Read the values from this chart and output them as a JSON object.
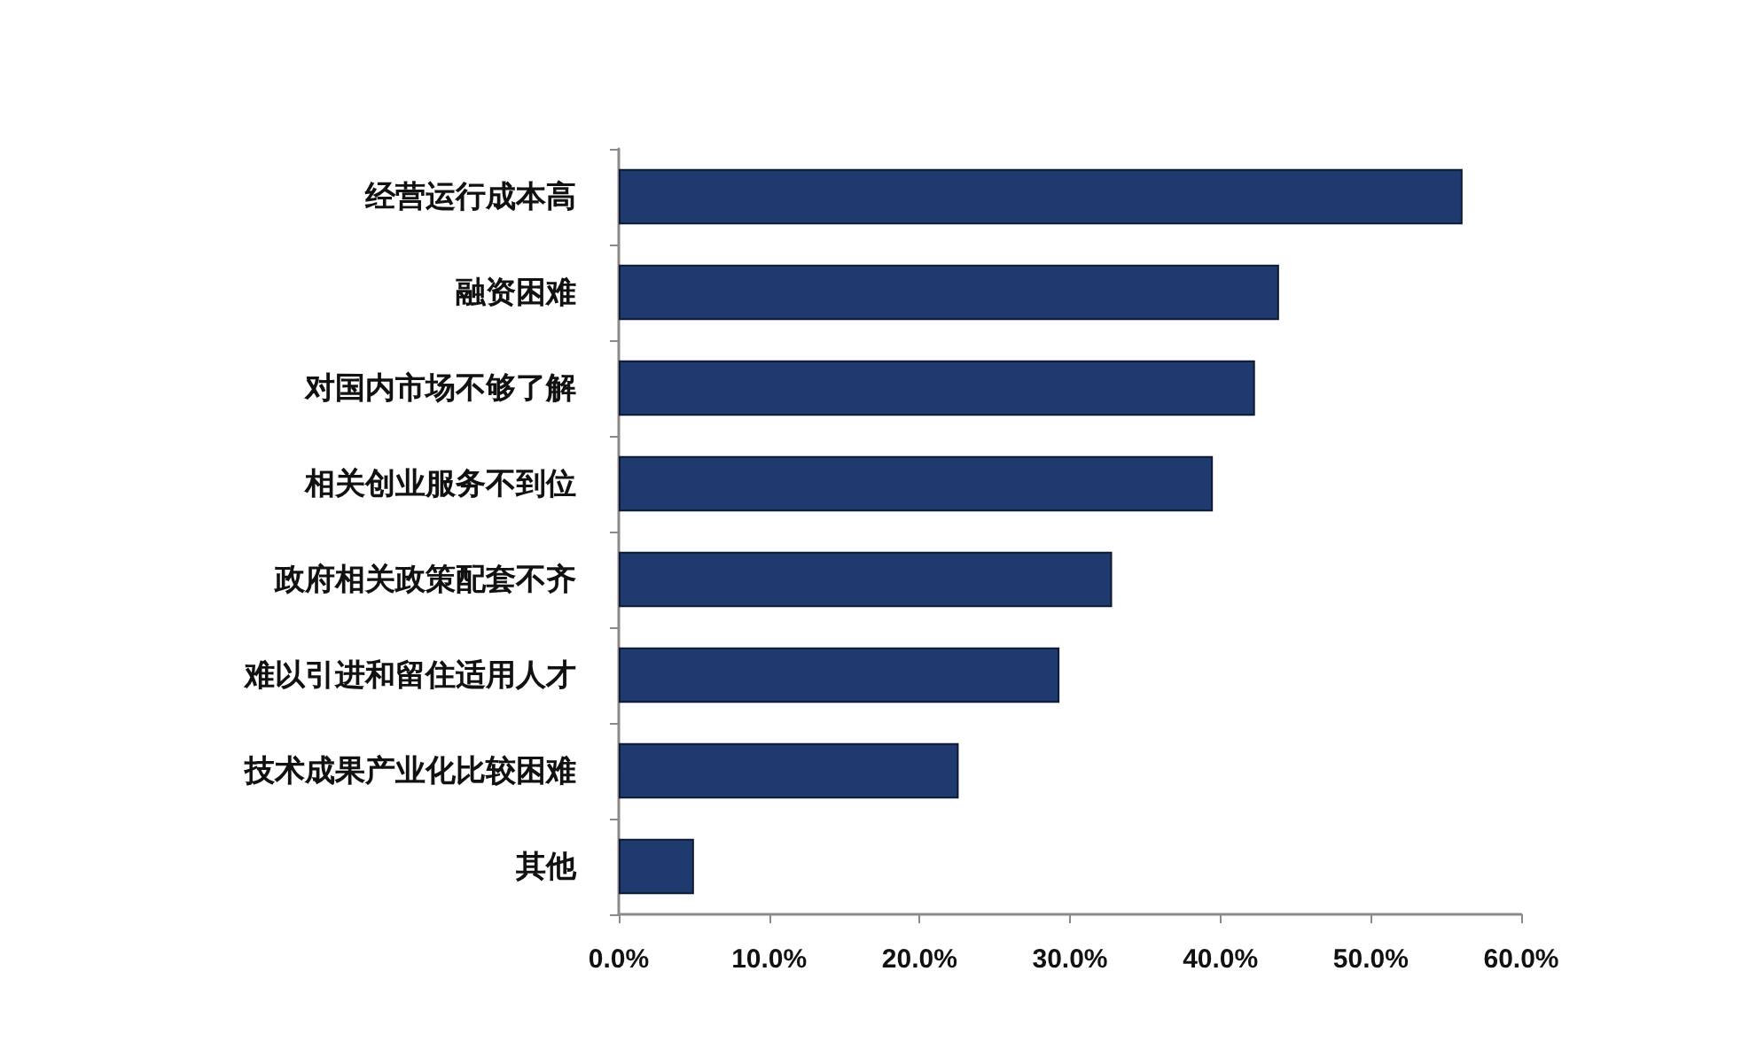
{
  "chart_data": {
    "type": "bar",
    "orientation": "horizontal",
    "categories": [
      "经营运行成本高",
      "融资困难",
      "对国内市场不够了解",
      "相关创业服务不到位",
      "政府相关政策配套不齐",
      "难以引进和留住适用人才",
      "技术成果产业化比较困难",
      "其他"
    ],
    "values": [
      56.1,
      43.9,
      42.3,
      39.5,
      32.8,
      29.3,
      22.6,
      5.0
    ],
    "color": "#1f3a6e",
    "xlim": [
      0,
      60
    ],
    "xticks": [
      {
        "value": 0,
        "label": "0.0%"
      },
      {
        "value": 10,
        "label": "10.0%"
      },
      {
        "value": 20,
        "label": "20.0%"
      },
      {
        "value": 30,
        "label": "30.0%"
      },
      {
        "value": 40,
        "label": "40.0%"
      },
      {
        "value": 50,
        "label": "50.0%"
      },
      {
        "value": 60,
        "label": "60.0%"
      }
    ],
    "grid": false
  }
}
